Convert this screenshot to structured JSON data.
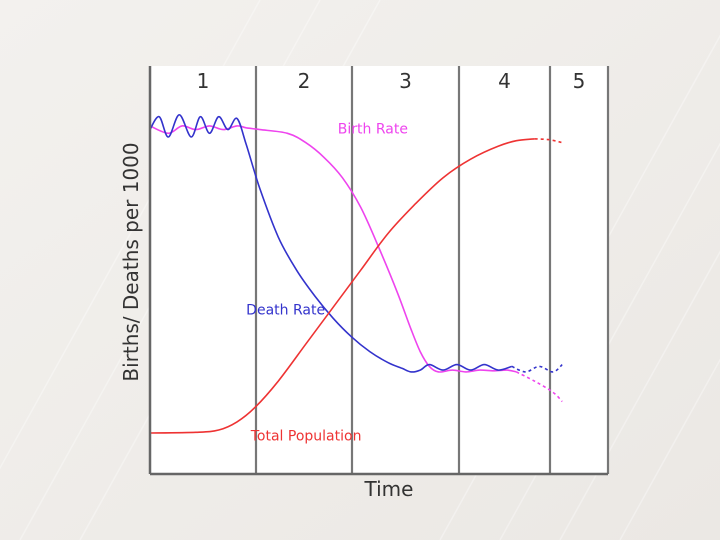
{
  "chart_data": {
    "type": "line",
    "title": "",
    "xlabel": "Time",
    "ylabel": "Births/ Deaths per 1000",
    "stages": [
      "1",
      "2",
      "3",
      "4",
      "5"
    ],
    "stage_boundaries": [
      0,
      1,
      2,
      3,
      4,
      4.5,
      5
    ],
    "xlim": [
      0,
      5
    ],
    "ylim": [
      0,
      1
    ],
    "grid": false,
    "legend": "inline labels",
    "series": [
      {
        "name": "Birth Rate",
        "color": "#ee44ee",
        "label_at": [
          2.05,
          0.91
        ],
        "dashed_from": 4.0,
        "points": [
          [
            0,
            0.93
          ],
          [
            0.2,
            0.91
          ],
          [
            0.35,
            0.93
          ],
          [
            0.5,
            0.92
          ],
          [
            0.65,
            0.93
          ],
          [
            0.8,
            0.92
          ],
          [
            0.95,
            0.93
          ],
          [
            1.05,
            0.925
          ],
          [
            1.2,
            0.92
          ],
          [
            1.5,
            0.91
          ],
          [
            1.7,
            0.885
          ],
          [
            1.9,
            0.845
          ],
          [
            2.1,
            0.79
          ],
          [
            2.3,
            0.71
          ],
          [
            2.5,
            0.6
          ],
          [
            2.7,
            0.48
          ],
          [
            2.85,
            0.38
          ],
          [
            2.95,
            0.32
          ],
          [
            3.05,
            0.28
          ],
          [
            3.15,
            0.265
          ],
          [
            3.3,
            0.27
          ],
          [
            3.45,
            0.265
          ],
          [
            3.6,
            0.27
          ],
          [
            3.75,
            0.268
          ],
          [
            3.9,
            0.27
          ],
          [
            4.0,
            0.265
          ],
          [
            4.2,
            0.24
          ],
          [
            4.4,
            0.21
          ],
          [
            4.5,
            0.185
          ]
        ]
      },
      {
        "name": "Death Rate",
        "color": "#3333cc",
        "label_at": [
          1.05,
          0.42
        ],
        "dashed_from": 3.95,
        "points": [
          [
            0,
            0.92
          ],
          [
            0.1,
            0.955
          ],
          [
            0.2,
            0.9
          ],
          [
            0.32,
            0.96
          ],
          [
            0.45,
            0.9
          ],
          [
            0.55,
            0.955
          ],
          [
            0.65,
            0.91
          ],
          [
            0.75,
            0.955
          ],
          [
            0.85,
            0.92
          ],
          [
            0.95,
            0.95
          ],
          [
            1.05,
            0.88
          ],
          [
            1.2,
            0.76
          ],
          [
            1.4,
            0.63
          ],
          [
            1.6,
            0.54
          ],
          [
            1.8,
            0.47
          ],
          [
            2.0,
            0.41
          ],
          [
            2.2,
            0.36
          ],
          [
            2.4,
            0.32
          ],
          [
            2.6,
            0.29
          ],
          [
            2.75,
            0.275
          ],
          [
            2.85,
            0.265
          ],
          [
            2.95,
            0.27
          ],
          [
            3.05,
            0.285
          ],
          [
            3.2,
            0.27
          ],
          [
            3.35,
            0.285
          ],
          [
            3.5,
            0.27
          ],
          [
            3.65,
            0.285
          ],
          [
            3.8,
            0.27
          ],
          [
            3.95,
            0.28
          ],
          [
            4.1,
            0.265
          ],
          [
            4.25,
            0.28
          ],
          [
            4.4,
            0.265
          ],
          [
            4.5,
            0.285
          ]
        ]
      },
      {
        "name": "Total Population",
        "color": "#ee3333",
        "label_at": [
          1.1,
          0.08
        ],
        "dashed_from": 4.2,
        "points": [
          [
            0,
            0.1
          ],
          [
            0.5,
            0.102
          ],
          [
            0.75,
            0.108
          ],
          [
            0.95,
            0.13
          ],
          [
            1.15,
            0.17
          ],
          [
            1.4,
            0.24
          ],
          [
            1.7,
            0.34
          ],
          [
            2.0,
            0.44
          ],
          [
            2.3,
            0.54
          ],
          [
            2.6,
            0.64
          ],
          [
            2.9,
            0.72
          ],
          [
            3.2,
            0.79
          ],
          [
            3.5,
            0.84
          ],
          [
            3.8,
            0.875
          ],
          [
            4.0,
            0.89
          ],
          [
            4.2,
            0.895
          ],
          [
            4.35,
            0.893
          ],
          [
            4.5,
            0.885
          ]
        ]
      }
    ]
  }
}
